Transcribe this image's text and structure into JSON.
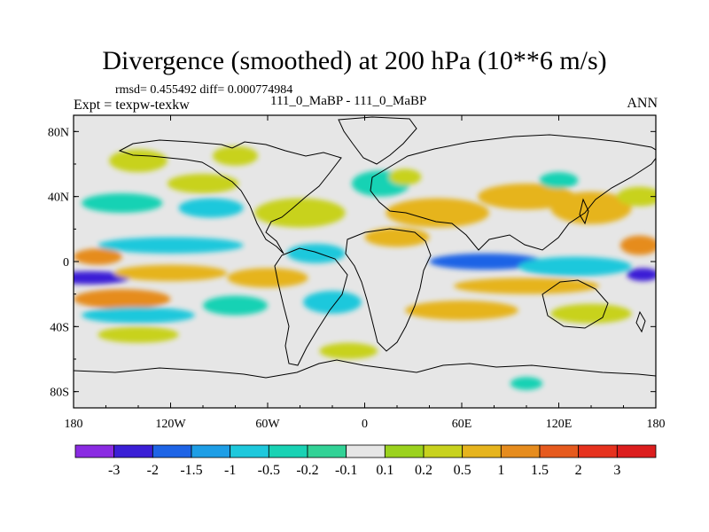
{
  "title": "Divergence (smoothed) at 200 hPa (10**6 m/s)",
  "stats": "rmsd= 0.455492 diff= 0.000774984",
  "expt_label": "Expt = texpw-texkw",
  "center_label": "111_0_MaBP - 111_0_MaBP",
  "season": "ANN",
  "chart_data": {
    "type": "heatmap",
    "title": "Divergence (smoothed) at 200 hPa (10**6 m/s)",
    "units": "10**6 m/s",
    "projection": "cylindrical equidistant",
    "xlim": [
      -180,
      180
    ],
    "ylim": [
      -90,
      90
    ],
    "x_ticks": [
      {
        "value": -180,
        "label": "180"
      },
      {
        "value": -120,
        "label": "120W"
      },
      {
        "value": -60,
        "label": "60W"
      },
      {
        "value": 0,
        "label": "0"
      },
      {
        "value": 60,
        "label": "60E"
      },
      {
        "value": 120,
        "label": "120E"
      },
      {
        "value": 180,
        "label": "180"
      }
    ],
    "y_ticks": [
      {
        "value": 80,
        "label": "80N"
      },
      {
        "value": 40,
        "label": "40N"
      },
      {
        "value": 0,
        "label": "0"
      },
      {
        "value": -40,
        "label": "40S"
      },
      {
        "value": -80,
        "label": "80S"
      }
    ],
    "colorbar": {
      "levels": [
        -3,
        -2,
        -1.5,
        -1,
        -0.5,
        -0.2,
        -0.1,
        0.1,
        0.2,
        0.5,
        1,
        1.5,
        2,
        3
      ],
      "labels": [
        "-3",
        "-2",
        "-1.5",
        "-1",
        "-0.5",
        "-0.2",
        "-0.1",
        "0.1",
        "0.2",
        "0.5",
        "1",
        "1.5",
        "2",
        "3"
      ],
      "colors": [
        "#8a2be2",
        "#3b1fd6",
        "#1e64e6",
        "#1e9ee6",
        "#1ec8dc",
        "#19d2b4",
        "#32d296",
        "#e6e6e6",
        "#9bd21e",
        "#c8d21e",
        "#e6b41e",
        "#e68c1e",
        "#e65a1e",
        "#e6321e",
        "#dc1e1e"
      ]
    },
    "field_blobs": [
      {
        "lon": -140,
        "lat": 62,
        "rlon": 18,
        "rlat": 7,
        "value": 0.3
      },
      {
        "lon": -80,
        "lat": 65,
        "rlon": 14,
        "rlat": 6,
        "value": 0.25
      },
      {
        "lon": -100,
        "lat": 48,
        "rlon": 22,
        "rlat": 6,
        "value": 0.35
      },
      {
        "lon": -150,
        "lat": 36,
        "rlon": 25,
        "rlat": 6,
        "value": -0.3
      },
      {
        "lon": -95,
        "lat": 33,
        "rlon": 20,
        "rlat": 6,
        "value": -0.6
      },
      {
        "lon": -40,
        "lat": 30,
        "rlon": 28,
        "rlat": 9,
        "value": 0.4
      },
      {
        "lon": 10,
        "lat": 48,
        "rlon": 18,
        "rlat": 8,
        "value": -0.5
      },
      {
        "lon": 25,
        "lat": 52,
        "rlon": 10,
        "rlat": 5,
        "value": 0.2
      },
      {
        "lon": 45,
        "lat": 30,
        "rlon": 32,
        "rlat": 9,
        "value": 0.5
      },
      {
        "lon": 100,
        "lat": 40,
        "rlon": 30,
        "rlat": 8,
        "value": 0.7
      },
      {
        "lon": 140,
        "lat": 33,
        "rlon": 25,
        "rlat": 10,
        "value": 0.8
      },
      {
        "lon": 120,
        "lat": 50,
        "rlon": 12,
        "rlat": 5,
        "value": -0.4
      },
      {
        "lon": 170,
        "lat": 40,
        "rlon": 14,
        "rlat": 6,
        "value": 0.4
      },
      {
        "lon": -165,
        "lat": 3,
        "rlon": 15,
        "rlat": 5,
        "value": 1.2
      },
      {
        "lon": -120,
        "lat": 10,
        "rlon": 45,
        "rlat": 5,
        "value": -0.8
      },
      {
        "lon": -30,
        "lat": 5,
        "rlon": 18,
        "rlat": 6,
        "value": -0.7
      },
      {
        "lon": 20,
        "lat": 15,
        "rlon": 20,
        "rlat": 6,
        "value": 0.6
      },
      {
        "lon": 75,
        "lat": 0,
        "rlon": 35,
        "rlat": 5,
        "value": -1.6
      },
      {
        "lon": 130,
        "lat": -3,
        "rlon": 35,
        "rlat": 6,
        "value": -1.0
      },
      {
        "lon": 170,
        "lat": 10,
        "rlon": 12,
        "rlat": 6,
        "value": 1.0
      },
      {
        "lon": -170,
        "lat": -10,
        "rlon": 25,
        "rlat": 4,
        "value": -3.0
      },
      {
        "lon": -120,
        "lat": -7,
        "rlon": 35,
        "rlat": 5,
        "value": 0.8
      },
      {
        "lon": -60,
        "lat": -10,
        "rlon": 25,
        "rlat": 6,
        "value": 0.6
      },
      {
        "lon": 100,
        "lat": -15,
        "rlon": 45,
        "rlat": 5,
        "value": 0.5
      },
      {
        "lon": 172,
        "lat": -8,
        "rlon": 10,
        "rlat": 4,
        "value": -2.2
      },
      {
        "lon": -150,
        "lat": -23,
        "rlon": 30,
        "rlat": 6,
        "value": 1.0
      },
      {
        "lon": -140,
        "lat": -33,
        "rlon": 35,
        "rlat": 5,
        "value": -0.6
      },
      {
        "lon": -80,
        "lat": -27,
        "rlon": 20,
        "rlat": 6,
        "value": -0.4
      },
      {
        "lon": -20,
        "lat": -25,
        "rlon": 18,
        "rlat": 7,
        "value": -0.6
      },
      {
        "lon": 60,
        "lat": -30,
        "rlon": 35,
        "rlat": 6,
        "value": 0.5
      },
      {
        "lon": 140,
        "lat": -32,
        "rlon": 25,
        "rlat": 6,
        "value": 0.4
      },
      {
        "lon": -140,
        "lat": -45,
        "rlon": 25,
        "rlat": 5,
        "value": 0.4
      },
      {
        "lon": -10,
        "lat": -55,
        "rlon": 18,
        "rlat": 5,
        "value": 0.3
      },
      {
        "lon": 100,
        "lat": -75,
        "rlon": 10,
        "rlat": 4,
        "value": -0.3
      }
    ]
  }
}
